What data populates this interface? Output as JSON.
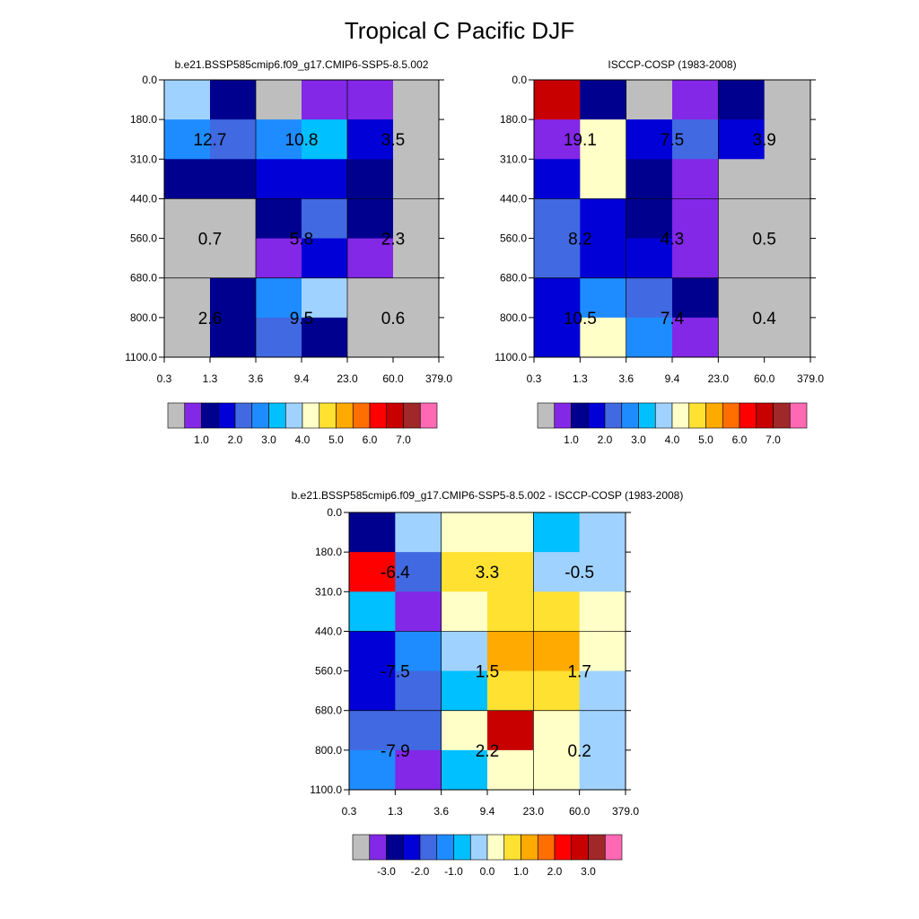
{
  "title": "Tropical C Pacific DJF",
  "chart_data": [
    {
      "type": "heatmap",
      "title": "b.e21.BSSP585cmip6.f09_g17.CMIP6-SSP5-8.5.002",
      "x_ticks": [
        "0.3",
        "1.3",
        "3.6",
        "9.4",
        "23.0",
        "60.0",
        "379.0"
      ],
      "y_ticks": [
        "0.0",
        "180.0",
        "310.0",
        "440.0",
        "560.0",
        "680.0",
        "800.0",
        "1100.0"
      ],
      "cell_colors": [
        [
          "#a0d2ff",
          "#00008f",
          "#bebebe",
          "#8228e6",
          "#8228e6",
          "#bebebe"
        ],
        [
          "#1e8cff",
          "#4169e1",
          "#1e8cff",
          "#00c0ff",
          "#0000d7",
          "#bebebe"
        ],
        [
          "#00008f",
          "#00008f",
          "#0000d7",
          "#0000d7",
          "#00008f",
          "#bebebe"
        ],
        [
          "#bebebe",
          "#bebebe",
          "#00008f",
          "#4169e1",
          "#00008f",
          "#bebebe"
        ],
        [
          "#bebebe",
          "#bebebe",
          "#8228e6",
          "#0000d7",
          "#8228e6",
          "#bebebe"
        ],
        [
          "#bebebe",
          "#00008f",
          "#1e8cff",
          "#a0d2ff",
          "#bebebe",
          "#bebebe"
        ],
        [
          "#bebebe",
          "#00008f",
          "#4169e1",
          "#00008f",
          "#bebebe",
          "#bebebe"
        ]
      ],
      "group_values": [
        [
          "12.7",
          "10.8",
          "3.5"
        ],
        [
          "0.7",
          "5.8",
          "2.3"
        ],
        [
          "2.6",
          "9.5",
          "0.6"
        ]
      ],
      "colorbar": {
        "colors": [
          "#bebebe",
          "#8228e6",
          "#00008f",
          "#0000d7",
          "#4169e1",
          "#1e8cff",
          "#00c0ff",
          "#a0d2ff",
          "#ffffc8",
          "#ffe132",
          "#ffaa00",
          "#ff6e00",
          "#ff0000",
          "#c80000",
          "#a02828",
          "#ff69b4"
        ],
        "labels": [
          "1.0",
          "2.0",
          "3.0",
          "4.0",
          "5.0",
          "6.0",
          "7.0"
        ]
      }
    },
    {
      "type": "heatmap",
      "title": "ISCCP-COSP (1983-2008)",
      "x_ticks": [
        "0.3",
        "1.3",
        "3.6",
        "9.4",
        "23.0",
        "60.0",
        "379.0"
      ],
      "y_ticks": [
        "0.0",
        "180.0",
        "310.0",
        "440.0",
        "560.0",
        "680.0",
        "800.0",
        "1100.0"
      ],
      "cell_colors": [
        [
          "#c80000",
          "#00008f",
          "#bebebe",
          "#8228e6",
          "#00008f",
          "#bebebe"
        ],
        [
          "#8228e6",
          "#ffffc8",
          "#0000d7",
          "#4169e1",
          "#0000d7",
          "#bebebe"
        ],
        [
          "#0000d7",
          "#ffffc8",
          "#00008f",
          "#8228e6",
          "#bebebe",
          "#bebebe"
        ],
        [
          "#4169e1",
          "#0000d7",
          "#00008f",
          "#8228e6",
          "#bebebe",
          "#bebebe"
        ],
        [
          "#4169e1",
          "#0000d7",
          "#0000d7",
          "#8228e6",
          "#bebebe",
          "#bebebe"
        ],
        [
          "#0000d7",
          "#1e8cff",
          "#4169e1",
          "#00008f",
          "#bebebe",
          "#bebebe"
        ],
        [
          "#0000d7",
          "#ffffc8",
          "#1e8cff",
          "#8228e6",
          "#bebebe",
          "#bebebe"
        ]
      ],
      "group_values": [
        [
          "19.1",
          "7.5",
          "3.9"
        ],
        [
          "8.2",
          "4.3",
          "0.5"
        ],
        [
          "10.5",
          "7.4",
          "0.4"
        ]
      ],
      "colorbar": {
        "colors": [
          "#bebebe",
          "#8228e6",
          "#00008f",
          "#0000d7",
          "#4169e1",
          "#1e8cff",
          "#00c0ff",
          "#a0d2ff",
          "#ffffc8",
          "#ffe132",
          "#ffaa00",
          "#ff6e00",
          "#ff0000",
          "#c80000",
          "#a02828",
          "#ff69b4"
        ],
        "labels": [
          "1.0",
          "2.0",
          "3.0",
          "4.0",
          "5.0",
          "6.0",
          "7.0"
        ]
      }
    },
    {
      "type": "heatmap",
      "title": "b.e21.BSSP585cmip6.f09_g17.CMIP6-SSP5-8.5.002 - ISCCP-COSP (1983-2008)",
      "x_ticks": [
        "0.3",
        "1.3",
        "3.6",
        "9.4",
        "23.0",
        "60.0",
        "379.0"
      ],
      "y_ticks": [
        "0.0",
        "180.0",
        "310.0",
        "440.0",
        "560.0",
        "680.0",
        "800.0",
        "1100.0"
      ],
      "cell_colors": [
        [
          "#00008f",
          "#a0d2ff",
          "#ffffc8",
          "#ffffc8",
          "#00c0ff",
          "#a0d2ff"
        ],
        [
          "#ff0000",
          "#4169e1",
          "#ffe132",
          "#ffe132",
          "#a0d2ff",
          "#a0d2ff"
        ],
        [
          "#00c0ff",
          "#8228e6",
          "#ffffc8",
          "#ffe132",
          "#ffe132",
          "#ffffc8"
        ],
        [
          "#0000d7",
          "#1e8cff",
          "#a0d2ff",
          "#ffaa00",
          "#ffaa00",
          "#ffffc8"
        ],
        [
          "#0000d7",
          "#4169e1",
          "#00c0ff",
          "#ffe132",
          "#ffe132",
          "#a0d2ff"
        ],
        [
          "#4169e1",
          "#4169e1",
          "#ffffc8",
          "#c80000",
          "#ffffc8",
          "#a0d2ff"
        ],
        [
          "#1e8cff",
          "#8228e6",
          "#00c0ff",
          "#ffffc8",
          "#ffffc8",
          "#a0d2ff"
        ]
      ],
      "group_values": [
        [
          "-6.4",
          "3.3",
          "-0.5"
        ],
        [
          "-7.5",
          "1.5",
          "1.7"
        ],
        [
          "-7.9",
          "2.2",
          "0.2"
        ]
      ],
      "colorbar": {
        "colors": [
          "#bebebe",
          "#8228e6",
          "#00008f",
          "#0000d7",
          "#4169e1",
          "#1e8cff",
          "#00c0ff",
          "#a0d2ff",
          "#ffffc8",
          "#ffe132",
          "#ffaa00",
          "#ff6e00",
          "#ff0000",
          "#c80000",
          "#a02828",
          "#ff69b4"
        ],
        "labels": [
          "-3.0",
          "-2.0",
          "-1.0",
          "0.0",
          "1.0",
          "2.0",
          "3.0"
        ]
      }
    }
  ]
}
